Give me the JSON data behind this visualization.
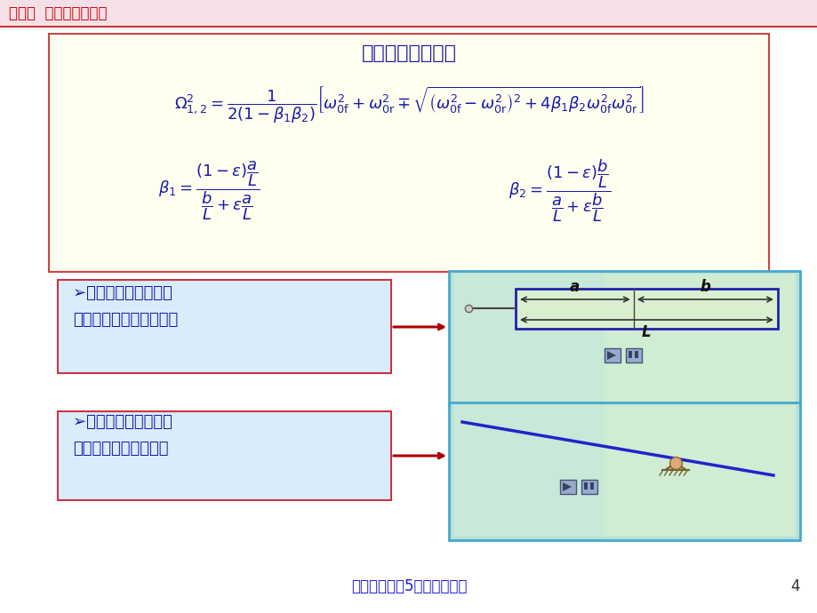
{
  "title_text": "第五节  双轴汽车的振动",
  "title_color": "#cc0000",
  "bg_color": "#ffffff",
  "formula_box_bg": "#fffff0",
  "formula_box_border": "#cc4444",
  "formula_title": "系统的两个主频率",
  "box1_text": "➢振动的节点在轴距之\n外时，称为垂直振动型。",
  "box2_text": "➢振动的节点在轴距之\n内时，称为角振动型。",
  "footer_text": "汽车理论（第5版）教学课件",
  "page_number": "4"
}
